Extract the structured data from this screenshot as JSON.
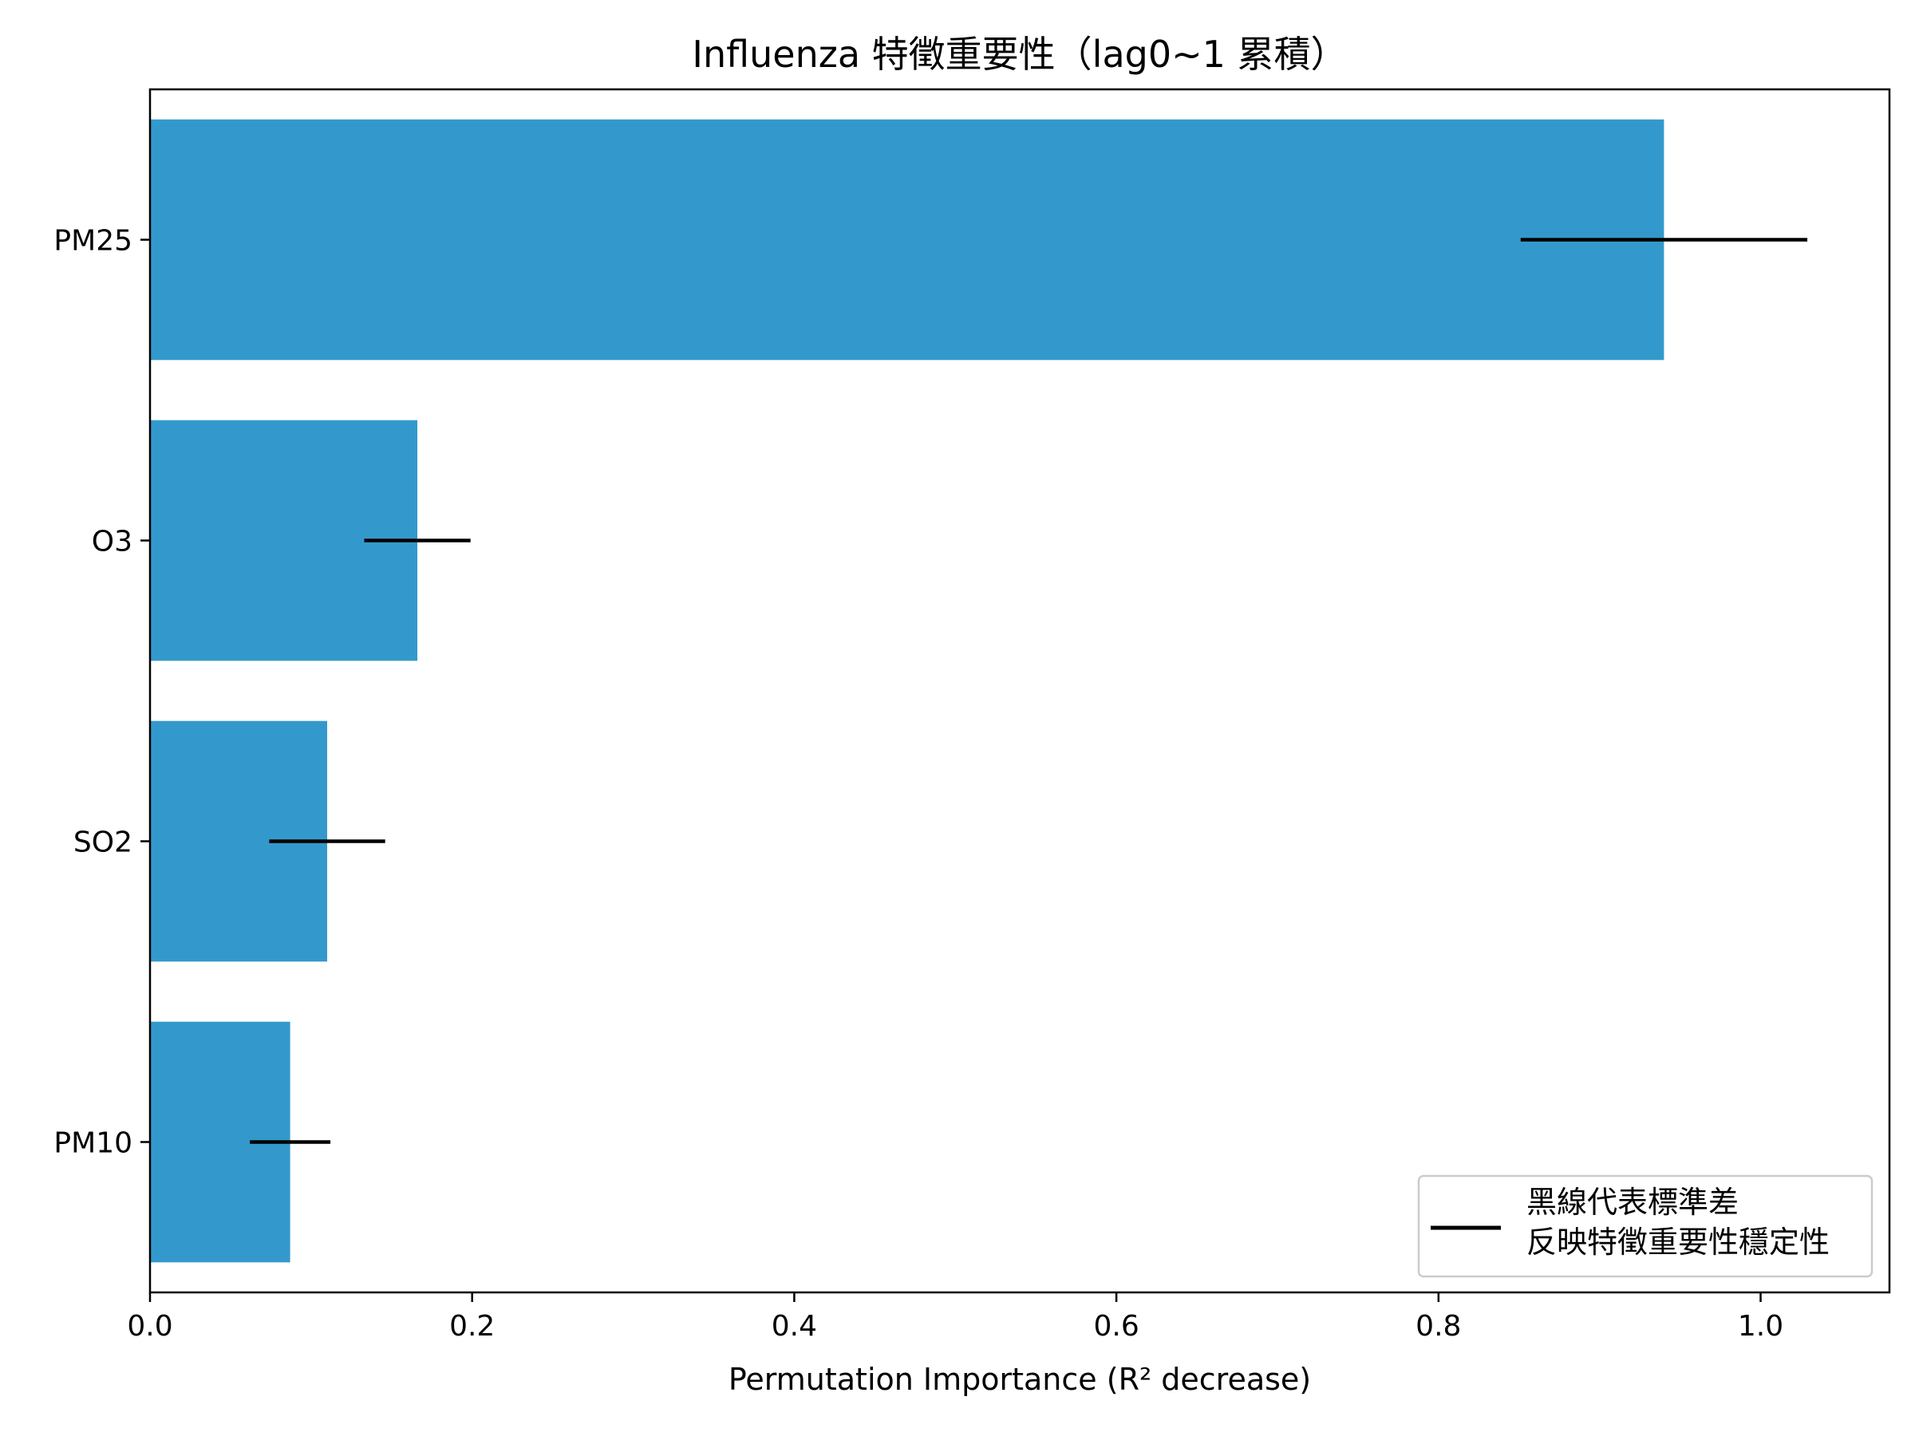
{
  "chart_data": {
    "type": "bar",
    "orientation": "horizontal",
    "title": "Influenza 特徵重要性（lag0~1 累積）",
    "xlabel": "Permutation Importance (R² decrease)",
    "ylabel": "",
    "categories": [
      "PM25",
      "O3",
      "SO2",
      "PM10"
    ],
    "values": [
      0.94,
      0.166,
      0.11,
      0.087
    ],
    "error": [
      0.089,
      0.033,
      0.036,
      0.025
    ],
    "xlim": [
      0.0,
      1.08
    ],
    "xticks": [
      0.0,
      0.2,
      0.4,
      0.6,
      0.8,
      1.0
    ],
    "xtick_labels": [
      "0.0",
      "0.2",
      "0.4",
      "0.6",
      "0.8",
      "1.0"
    ],
    "bar_color": "#3399cc",
    "error_color": "#000000",
    "grid": false,
    "legend": {
      "location": "lower-right",
      "entries": [
        {
          "line1": "黑線代表標準差",
          "line2": "反映特徵重要性穩定性"
        }
      ]
    }
  }
}
